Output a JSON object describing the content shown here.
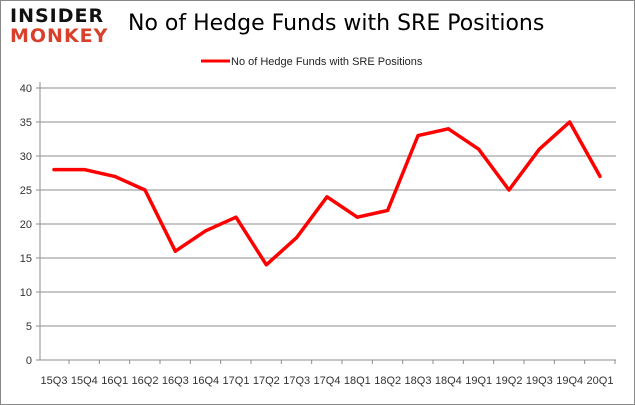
{
  "logo": {
    "line1": "INSIDER",
    "line2": "MONKEY"
  },
  "chart_data": {
    "type": "line",
    "title": "No of Hedge Funds with SRE Positions",
    "categories": [
      "15Q3",
      "15Q4",
      "16Q1",
      "16Q2",
      "16Q3",
      "16Q4",
      "17Q1",
      "17Q2",
      "17Q3",
      "17Q4",
      "18Q1",
      "18Q2",
      "18Q3",
      "18Q4",
      "19Q1",
      "19Q2",
      "19Q3",
      "19Q4",
      "20Q1"
    ],
    "series": [
      {
        "name": "No of Hedge Funds with SRE Positions",
        "color": "#ff0000",
        "values": [
          28,
          28,
          27,
          25,
          16,
          19,
          21,
          14,
          18,
          24,
          21,
          22,
          33,
          34,
          31,
          25,
          31,
          35,
          27
        ]
      }
    ],
    "ylim": [
      0,
      40
    ],
    "yticks": [
      0,
      5,
      10,
      15,
      20,
      25,
      30,
      35,
      40
    ],
    "grid": true,
    "legend": "top-center"
  }
}
